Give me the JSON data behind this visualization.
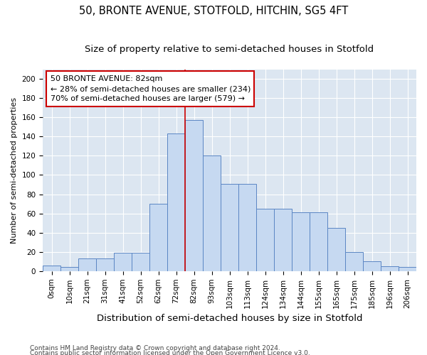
{
  "title": "50, BRONTE AVENUE, STOTFOLD, HITCHIN, SG5 4FT",
  "subtitle": "Size of property relative to semi-detached houses in Stotfold",
  "xlabel": "Distribution of semi-detached houses by size in Stotfold",
  "ylabel": "Number of semi-detached properties",
  "footnote1": "Contains HM Land Registry data © Crown copyright and database right 2024.",
  "footnote2": "Contains public sector information licensed under the Open Government Licence v3.0.",
  "bin_labels": [
    "0sqm",
    "10sqm",
    "21sqm",
    "31sqm",
    "41sqm",
    "52sqm",
    "62sqm",
    "72sqm",
    "82sqm",
    "93sqm",
    "103sqm",
    "113sqm",
    "124sqm",
    "134sqm",
    "144sqm",
    "155sqm",
    "165sqm",
    "175sqm",
    "185sqm",
    "196sqm",
    "206sqm"
  ],
  "bar_heights": [
    6,
    4,
    13,
    13,
    19,
    19,
    70,
    143,
    157,
    120,
    91,
    91,
    65,
    65,
    61,
    61,
    45,
    20,
    10,
    5,
    4
  ],
  "bar_color": "#c6d9f1",
  "bar_edge_color": "#5b86c4",
  "bg_color": "#dce6f1",
  "grid_color": "#ffffff",
  "annotation_text": "50 BRONTE AVENUE: 82sqm\n← 28% of semi-detached houses are smaller (234)\n70% of semi-detached houses are larger (579) →",
  "annotation_box_color": "#ffffff",
  "annotation_border_color": "#cc0000",
  "property_line_color": "#cc0000",
  "ylim": [
    0,
    210
  ],
  "yticks": [
    0,
    20,
    40,
    60,
    80,
    100,
    120,
    140,
    160,
    180,
    200
  ],
  "title_fontsize": 10.5,
  "subtitle_fontsize": 9.5,
  "xlabel_fontsize": 9.5,
  "ylabel_fontsize": 8,
  "tick_fontsize": 7.5,
  "annotation_fontsize": 8,
  "footnote_fontsize": 6.5
}
